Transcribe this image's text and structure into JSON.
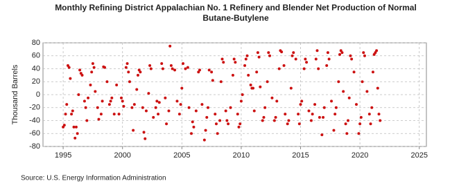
{
  "chart_data": {
    "type": "scatter",
    "title": "Monthly Refining District Appalachian No. 1 Refinery and Blender Net Production of Normal Butane-Butylene",
    "y_label": "Thousand Barrels",
    "source": "Source: U.S. Energy Information Administration",
    "color": "#cc1111",
    "grid": true,
    "xlim": [
      1993.3,
      2025.6
    ],
    "xticks": [
      1995,
      2000,
      2005,
      2010,
      2015,
      2020,
      2025
    ],
    "ylim": [
      -80,
      80
    ],
    "yticks": [
      -80,
      -60,
      -40,
      -20,
      0,
      20,
      40,
      60,
      80
    ],
    "x": [
      1995.0,
      1995.1,
      1995.2,
      1995.3,
      1995.4,
      1995.5,
      1995.6,
      1995.7,
      1995.8,
      1995.9,
      1996.0,
      1996.1,
      1996.2,
      1996.3,
      1996.4,
      1996.5,
      1996.6,
      1996.8,
      1996.9,
      1997.0,
      1997.1,
      1997.3,
      1997.4,
      1997.5,
      1997.6,
      1997.7,
      1997.9,
      1998.0,
      1998.2,
      1998.3,
      1998.4,
      1998.5,
      1998.7,
      1998.9,
      1999.0,
      1999.1,
      1999.3,
      1999.5,
      1999.7,
      1999.9,
      2000.0,
      2000.1,
      2000.3,
      2000.4,
      2000.5,
      2000.6,
      2000.8,
      2000.9,
      2001.0,
      2001.2,
      2001.3,
      2001.4,
      2001.5,
      2001.7,
      2001.8,
      2001.9,
      2002.0,
      2002.2,
      2002.3,
      2002.4,
      2002.6,
      2002.8,
      2002.9,
      2003.0,
      2003.1,
      2003.3,
      2003.4,
      2003.6,
      2003.7,
      2003.9,
      2004.0,
      2004.1,
      2004.2,
      2004.4,
      2004.6,
      2004.8,
      2004.9,
      2005.0,
      2005.1,
      2005.3,
      2005.5,
      2005.6,
      2005.8,
      2005.9,
      2006.0,
      2006.2,
      2006.4,
      2006.5,
      2006.7,
      2006.9,
      2007.0,
      2007.1,
      2007.2,
      2007.3,
      2007.5,
      2007.6,
      2007.8,
      2007.9,
      2008.0,
      2008.2,
      2008.3,
      2008.4,
      2008.5,
      2008.7,
      2008.8,
      2008.9,
      2009.1,
      2009.3,
      2009.4,
      2009.5,
      2009.7,
      2009.8,
      2009.9,
      2010.0,
      2010.1,
      2010.3,
      2010.4,
      2010.5,
      2010.6,
      2010.8,
      2010.9,
      2011.0,
      2011.1,
      2011.3,
      2011.4,
      2011.5,
      2011.6,
      2011.8,
      2011.9,
      2012.0,
      2012.2,
      2012.3,
      2012.4,
      2012.6,
      2012.8,
      2012.9,
      2013.0,
      2013.2,
      2013.3,
      2013.4,
      2013.6,
      2013.7,
      2013.9,
      2014.0,
      2014.2,
      2014.3,
      2014.4,
      2014.6,
      2014.8,
      2014.9,
      2015.0,
      2015.1,
      2015.3,
      2015.4,
      2015.5,
      2015.7,
      2015.9,
      2016.0,
      2016.2,
      2016.3,
      2016.4,
      2016.5,
      2016.6,
      2016.8,
      2016.9,
      2017.0,
      2017.2,
      2017.3,
      2017.4,
      2017.6,
      2017.8,
      2017.9,
      2018.0,
      2018.2,
      2018.3,
      2018.4,
      2018.5,
      2018.6,
      2018.8,
      2018.9,
      2019.0,
      2019.1,
      2019.2,
      2019.3,
      2019.5,
      2019.7,
      2019.9,
      2020.0,
      2020.1,
      2020.2,
      2020.3,
      2020.4,
      2020.6,
      2020.8,
      2020.9,
      2021.0,
      2021.1,
      2021.2,
      2021.3,
      2021.4,
      2021.5,
      2021.6,
      2021.7
    ],
    "values": [
      -50,
      -47,
      -30,
      -15,
      45,
      42,
      25,
      -30,
      -25,
      -50,
      -67,
      -50,
      -60,
      0,
      38,
      33,
      30,
      -10,
      -20,
      -40,
      -5,
      15,
      35,
      48,
      42,
      5,
      -20,
      -38,
      -30,
      -10,
      43,
      42,
      20,
      -15,
      -10,
      -5,
      -30,
      15,
      -30,
      -5,
      -10,
      -18,
      42,
      48,
      35,
      20,
      -20,
      -55,
      -15,
      8,
      30,
      38,
      35,
      -20,
      -58,
      -68,
      -25,
      2,
      45,
      40,
      -35,
      -20,
      -10,
      -30,
      -12,
      48,
      40,
      -5,
      -45,
      -25,
      75,
      45,
      40,
      38,
      -10,
      -30,
      -15,
      10,
      48,
      40,
      42,
      -20,
      -60,
      -42,
      -50,
      -25,
      35,
      38,
      -15,
      -70,
      -55,
      -35,
      -20,
      38,
      35,
      22,
      -30,
      -45,
      -60,
      -40,
      20,
      55,
      50,
      -25,
      -40,
      -45,
      -20,
      30,
      55,
      50,
      -30,
      -50,
      -45,
      -10,
      0,
      45,
      55,
      60,
      30,
      15,
      10,
      10,
      -25,
      35,
      65,
      58,
      12,
      -40,
      -35,
      -20,
      20,
      65,
      60,
      -5,
      -40,
      -35,
      -10,
      40,
      68,
      66,
      45,
      -30,
      -45,
      -40,
      10,
      60,
      65,
      55,
      -30,
      -45,
      -15,
      -10,
      40,
      55,
      50,
      -25,
      -40,
      -30,
      -15,
      55,
      68,
      40,
      -35,
      -62,
      -35,
      -20,
      45,
      65,
      55,
      -10,
      -55,
      -30,
      -20,
      20,
      62,
      68,
      65,
      5,
      -45,
      -60,
      -40,
      -5,
      60,
      55,
      35,
      -15,
      -60,
      -45,
      -35,
      20,
      65,
      60,
      5,
      -30,
      -45,
      -20,
      35,
      62,
      65,
      68,
      10,
      -30,
      -40
    ]
  }
}
